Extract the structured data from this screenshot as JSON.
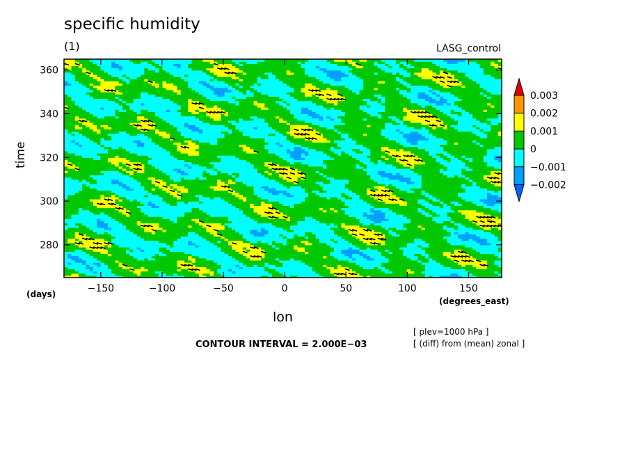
{
  "chart_data": {
    "type": "heatmap",
    "title": "specific humidity",
    "subtitle": "(1)",
    "run_label": "LASG_control",
    "xlabel": "lon",
    "ylabel": "time",
    "x_units": "(degrees_east)",
    "y_units": "(days)",
    "xlim": [
      -180,
      177
    ],
    "ylim": [
      265,
      365
    ],
    "x_ticks": [
      -150,
      -100,
      -50,
      0,
      50,
      100,
      150
    ],
    "x_tick_labels": [
      "−150",
      "−100",
      "−50",
      "0",
      "50",
      "100",
      "150"
    ],
    "y_ticks": [
      280,
      300,
      320,
      340,
      360
    ],
    "y_tick_labels": [
      "280",
      "300",
      "320",
      "340",
      "360"
    ],
    "colorbar": {
      "levels": [
        0.003,
        0.002,
        0.001,
        0,
        -0.001,
        -0.002
      ],
      "labels": [
        "0.003",
        "0.002",
        "0.001",
        "0",
        "−0.001",
        "−0.002"
      ],
      "colors": [
        "#e60000",
        "#ff9600",
        "#ffff00",
        "#00c800",
        "#00ffff",
        "#00a0ff",
        "#0064ff"
      ]
    },
    "contour_interval": "CONTOUR INTERVAL = 2.000E−03",
    "notes": [
      "[ plev=1000 hPa ]",
      "[ (diff) from (mean) zonal ]"
    ],
    "grid": false
  },
  "colors": {
    "background": "#ffffff",
    "contour": "#000000"
  }
}
